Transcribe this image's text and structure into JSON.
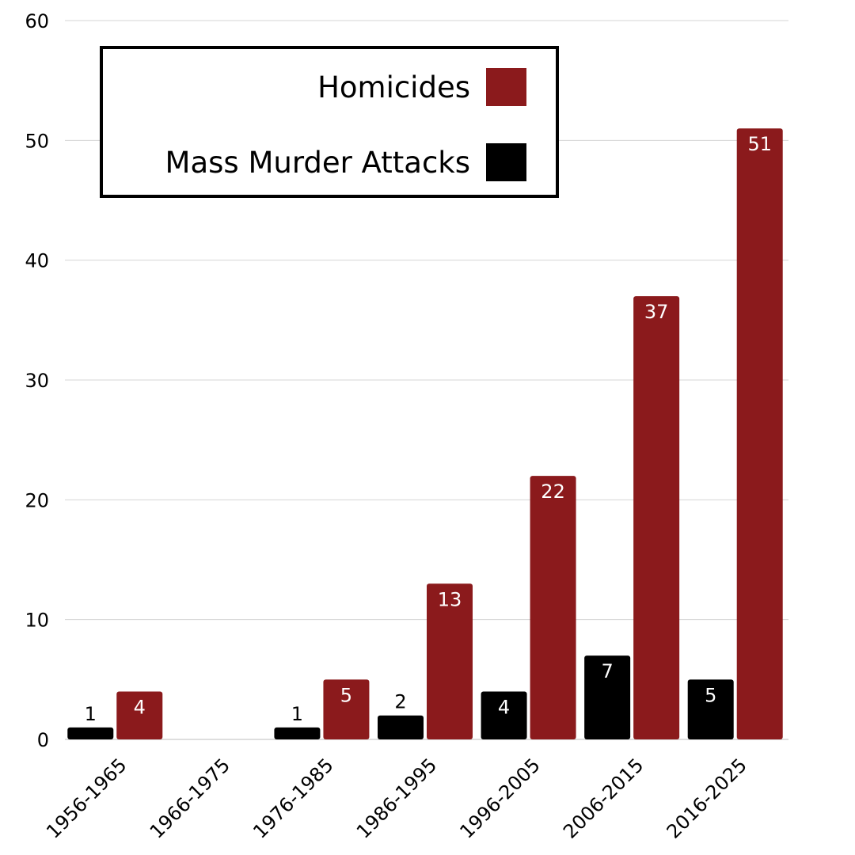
{
  "chart_data": {
    "type": "bar",
    "title": "",
    "xlabel": "",
    "ylabel": "",
    "ylim": [
      0,
      60
    ],
    "yticks": [
      0,
      10,
      20,
      30,
      40,
      50,
      60
    ],
    "grid": true,
    "legend_position": "top-left",
    "categories": [
      "1956-1965",
      "1966-1975",
      "1976-1985",
      "1986-1995",
      "1996-2005",
      "2006-2015",
      "2016-2025"
    ],
    "series": [
      {
        "name": "Mass Murder Attacks",
        "color": "#000000",
        "values": [
          1,
          0,
          1,
          2,
          4,
          7,
          5
        ]
      },
      {
        "name": "Homicides",
        "color": "#8b1a1c",
        "values": [
          4,
          0,
          5,
          13,
          22,
          37,
          51
        ]
      }
    ],
    "legend_order": [
      "Homicides",
      "Mass Murder Attacks"
    ]
  }
}
